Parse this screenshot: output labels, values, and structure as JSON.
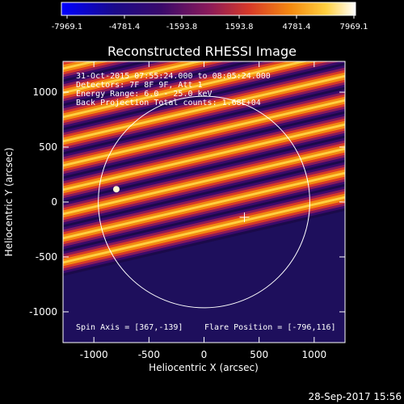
{
  "chart_data": {
    "type": "heatmap",
    "title": "Reconstructed RHESSI Image",
    "xlabel": "Heliocentric X (arcsec)",
    "ylabel": "Heliocentric Y (arcsec)",
    "xlim": [
      -1280,
      1280
    ],
    "ylim": [
      -1280,
      1280
    ],
    "x_ticks": [
      "-1000",
      "-500",
      "0",
      "500",
      "1000"
    ],
    "x_tick_values": [
      -1000,
      -500,
      0,
      500,
      1000
    ],
    "y_ticks": [
      "1000",
      "500",
      "0",
      "-500",
      "-1000"
    ],
    "y_tick_values": [
      1000,
      500,
      0,
      -500,
      -1000
    ],
    "colorbar": {
      "tick_labels": [
        "-7969.1",
        "-4781.4",
        "-1593.8",
        "1593.8",
        "4781.4",
        "7969.1"
      ],
      "range": [
        -7969.1,
        7969.1
      ]
    },
    "annotations": [
      "31-Oct-2015 07:55:24.000 to 08:05:24.000",
      "Detectors: 7F 8F 9F, Att 1",
      "Energy Range: 6.0 - 25.0 keV",
      "Back Projection   Total counts: 1.68E+04"
    ],
    "footer_left": "Spin Axis = [367,-139]",
    "footer_right": "Flare Position = [-796,116]",
    "spin_axis": [
      367,
      -139
    ],
    "flare_position": [
      -796,
      116
    ],
    "solar_disk_radius_arcsec": 960
  },
  "timestamp": "28-Sep-2017 15:56"
}
